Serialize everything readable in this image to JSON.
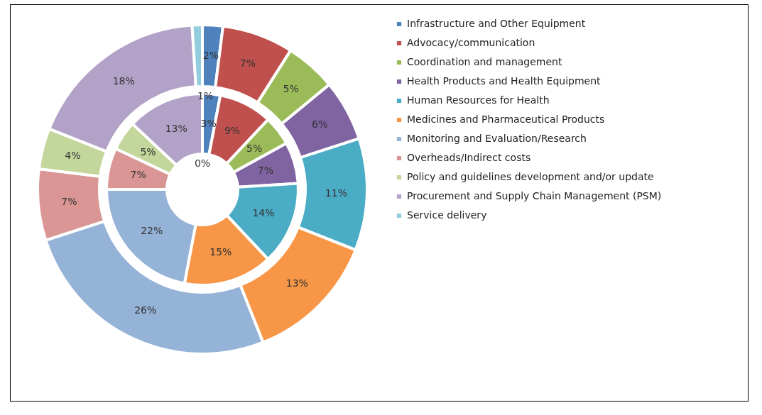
{
  "chart_data": {
    "type": "donut",
    "categories": [
      "Infrastructure and Other Equipment",
      "Advocacy/communication",
      "Coordination and management",
      "Health Products and Health Equipment",
      "Human Resources for Health",
      "Medicines and Pharmaceutical Products",
      "Monitoring and Evaluation/Research",
      "Overheads/Indirect costs",
      "Policy and guidelines development and/or update",
      "Procurement and Supply Chain Management (PSM)",
      "Service delivery"
    ],
    "colors": [
      "#4f81bd",
      "#c0504d",
      "#9bbb59",
      "#8064a2",
      "#4bacc6",
      "#f79646",
      "#95b3d7",
      "#d99694",
      "#c3d69b",
      "#b2a2c7",
      "#93cddd"
    ],
    "series": [
      {
        "values": [
          3,
          9,
          5,
          7,
          14,
          15,
          22,
          7,
          5,
          13,
          0
        ],
        "value_labels": [
          "3%",
          "9%",
          "5%",
          "7%",
          "14%",
          "15%",
          "22%",
          "7%",
          "5%",
          "13%",
          "0%"
        ]
      },
      {
        "values": [
          2,
          7,
          5,
          6,
          11,
          13,
          26,
          7,
          4,
          18,
          1
        ],
        "value_labels": [
          "2%",
          "7%",
          "5%",
          "6%",
          "11%",
          "13%",
          "26%",
          "7%",
          "4%",
          "18%",
          "1%"
        ]
      }
    ],
    "legend": "right"
  }
}
